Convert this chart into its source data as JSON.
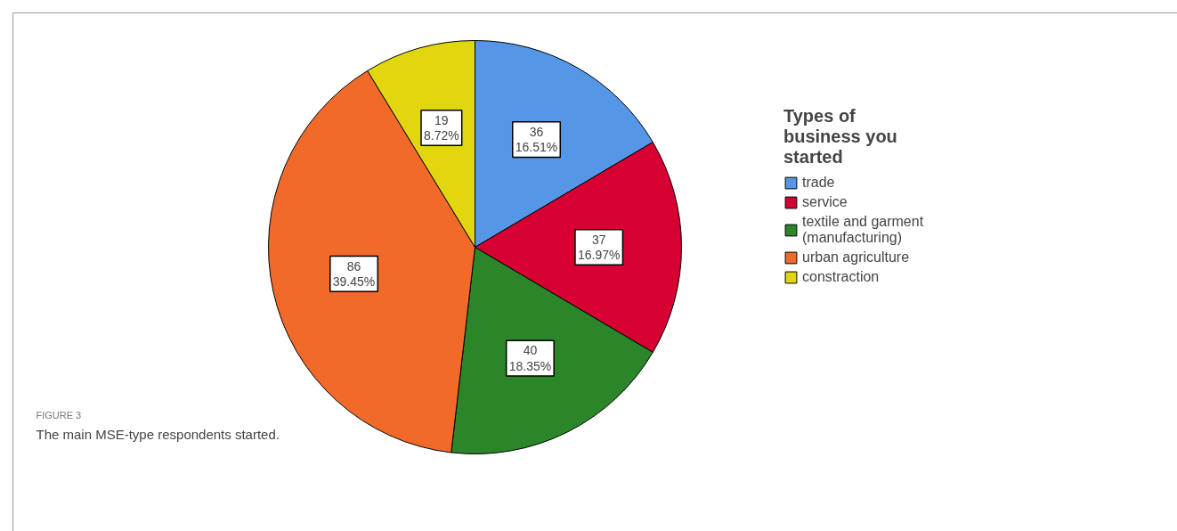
{
  "chart_data": {
    "type": "pie",
    "legend_title": "Types of\nbusiness you\nstarted",
    "categories": [
      "trade",
      "service",
      "textile and garment\n(manufacturing)",
      "urban agriculture",
      "constraction"
    ],
    "values": [
      36,
      37,
      40,
      86,
      19
    ],
    "colors": [
      "#5596e6",
      "#d60032",
      "#2a8628",
      "#f26a2a",
      "#e2d60f"
    ],
    "value_labels": [
      "36\n16.51%",
      "37\n16.97%",
      "40\n18.35%",
      "86\n39.45%",
      "19\n8.72%"
    ],
    "legend": "right",
    "annotations": [
      "FIGURE 3",
      "The main MSE-type respondents started."
    ]
  }
}
